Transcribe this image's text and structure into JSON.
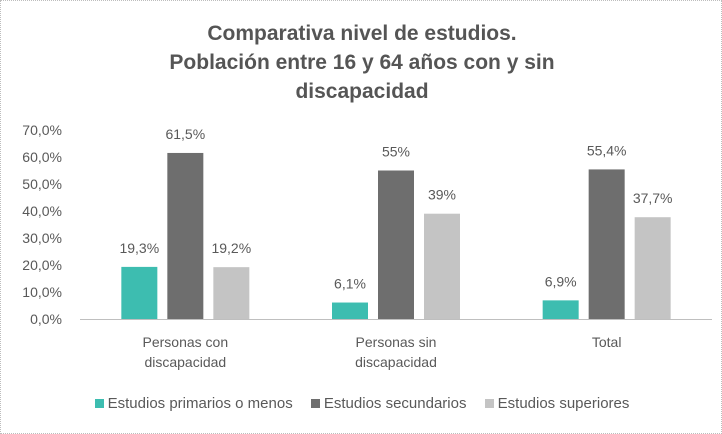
{
  "chart_data": {
    "type": "bar",
    "title_lines": [
      "Comparativa nivel de estudios.",
      "Población entre 16 y 64 años con y sin",
      "discapacidad"
    ],
    "title": "Comparativa nivel de estudios. Población entre 16 y 64 años con y sin discapacidad",
    "xlabel": "",
    "ylabel": "",
    "ylim": [
      0,
      70
    ],
    "yticks": [
      0,
      10,
      20,
      30,
      40,
      50,
      60,
      70
    ],
    "ytick_labels": [
      "0,0%",
      "10,0%",
      "20,0%",
      "30,0%",
      "40,0%",
      "50,0%",
      "60,0%",
      "70,0%"
    ],
    "grid": false,
    "legend_position": "bottom",
    "categories": [
      [
        "Personas con",
        "discapacidad"
      ],
      [
        "Personas sin",
        "discapacidad"
      ],
      [
        "Total"
      ]
    ],
    "series": [
      {
        "name": "Estudios primarios o menos",
        "color": "#3dbdb0",
        "values": [
          19.3,
          6.1,
          6.9
        ],
        "labels": [
          "19,3%",
          "6,1%",
          "6,9%"
        ]
      },
      {
        "name": "Estudios secundarios",
        "color": "#6e6e6e",
        "values": [
          61.5,
          55.0,
          55.4
        ],
        "labels": [
          "61,5%",
          "55%",
          "55,4%"
        ]
      },
      {
        "name": "Estudios superiores",
        "color": "#c4c4c4",
        "values": [
          19.2,
          39.0,
          37.7
        ],
        "labels": [
          "19,2%",
          "39%",
          "37,7%"
        ]
      }
    ]
  }
}
